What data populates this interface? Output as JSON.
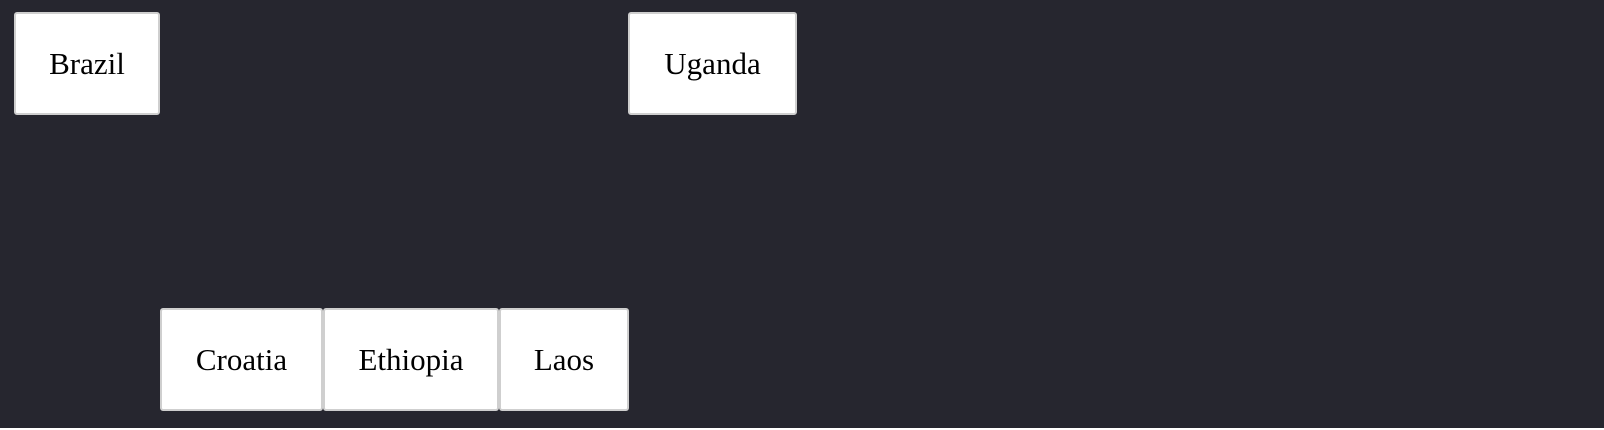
{
  "tiles": [
    {
      "label": "Brazil"
    },
    {
      "label": "Uganda"
    },
    {
      "label": "Croatia"
    },
    {
      "label": "Ethiopia"
    },
    {
      "label": "Laos"
    }
  ],
  "colors": {
    "background": "#26262f",
    "tile": "#ffffff",
    "tile_border": "#cfcfcf",
    "text": "#000000"
  }
}
